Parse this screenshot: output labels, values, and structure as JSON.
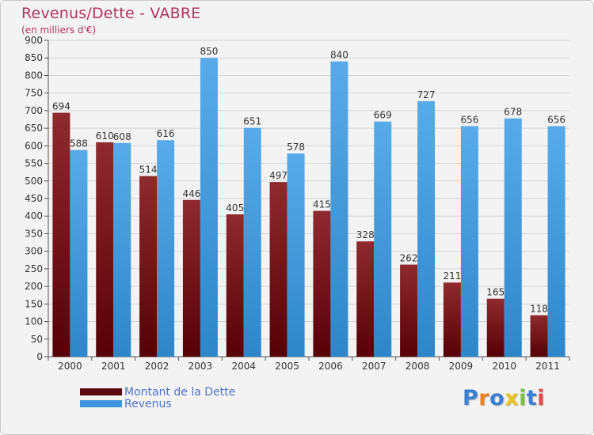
{
  "header": {
    "title": "Revenus/Dette - VABRE",
    "subtitle": "(en milliers d'€)"
  },
  "chart_data": {
    "type": "bar",
    "categories": [
      "2000",
      "2001",
      "2002",
      "2003",
      "2004",
      "2005",
      "2006",
      "2007",
      "2008",
      "2009",
      "2010",
      "2011"
    ],
    "series": [
      {
        "name": "Montant de la Dette",
        "values": [
          694,
          610,
          514,
          446,
          405,
          497,
          415,
          328,
          262,
          211,
          165,
          118
        ],
        "color": "#8b1c22"
      },
      {
        "name": "Revenus",
        "values": [
          588,
          608,
          616,
          850,
          651,
          578,
          840,
          669,
          727,
          656,
          678,
          656
        ],
        "color": "#4a9fe0"
      }
    ],
    "ylim": [
      0,
      900
    ],
    "ytick_step": 50,
    "grid": true,
    "legend_position": "bottom-left"
  },
  "legend": {
    "items": [
      {
        "label": "Montant de la Dette",
        "color": "#5a0a0e"
      },
      {
        "label": "Revenus",
        "color": "#3e95dc"
      }
    ]
  },
  "logo": {
    "letters": [
      "P",
      "r",
      "o",
      "x",
      "i",
      "t",
      "i"
    ],
    "colors": [
      "#3b7fd4",
      "#e8821f",
      "#3b7fd4",
      "#e8c21f",
      "#7cc043",
      "#3b7fd4",
      "#e04848"
    ]
  }
}
